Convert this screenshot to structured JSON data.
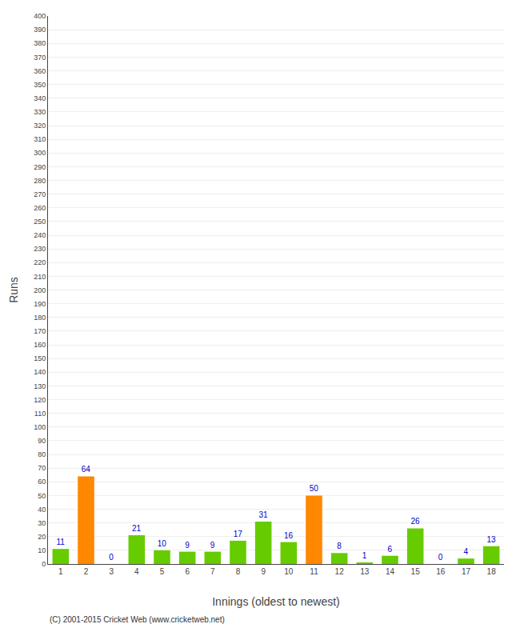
{
  "chart_data": {
    "type": "bar",
    "xlabel": "Innings (oldest to newest)",
    "ylabel": "Runs",
    "x": [
      1,
      2,
      3,
      4,
      5,
      6,
      7,
      8,
      9,
      10,
      11,
      12,
      13,
      14,
      15,
      16,
      17,
      18
    ],
    "values": [
      11,
      64,
      0,
      21,
      10,
      9,
      9,
      17,
      31,
      16,
      50,
      8,
      1,
      6,
      26,
      0,
      4,
      13
    ],
    "colors": [
      "#66cc00",
      "#ff8800",
      "#66cc00",
      "#66cc00",
      "#66cc00",
      "#66cc00",
      "#66cc00",
      "#66cc00",
      "#66cc00",
      "#66cc00",
      "#ff8800",
      "#66cc00",
      "#66cc00",
      "#66cc00",
      "#66cc00",
      "#66cc00",
      "#66cc00",
      "#66cc00"
    ],
    "xlim": [
      0.5,
      18.5
    ],
    "xticks": [
      1,
      2,
      3,
      4,
      5,
      6,
      7,
      8,
      9,
      10,
      11,
      12,
      13,
      14,
      15,
      16,
      17,
      18
    ],
    "ylim": [
      0,
      400
    ],
    "yticks": [
      0,
      10,
      20,
      30,
      40,
      50,
      60,
      70,
      80,
      90,
      100,
      110,
      120,
      130,
      140,
      150,
      160,
      170,
      180,
      190,
      200,
      210,
      220,
      230,
      240,
      250,
      260,
      270,
      280,
      290,
      300,
      310,
      320,
      330,
      340,
      350,
      360,
      370,
      380,
      390,
      400
    ],
    "grid": true,
    "data_labels": true,
    "annotations": [
      "(C) 2001-2015 Cricket Web (www.cricketweb.net)"
    ]
  }
}
